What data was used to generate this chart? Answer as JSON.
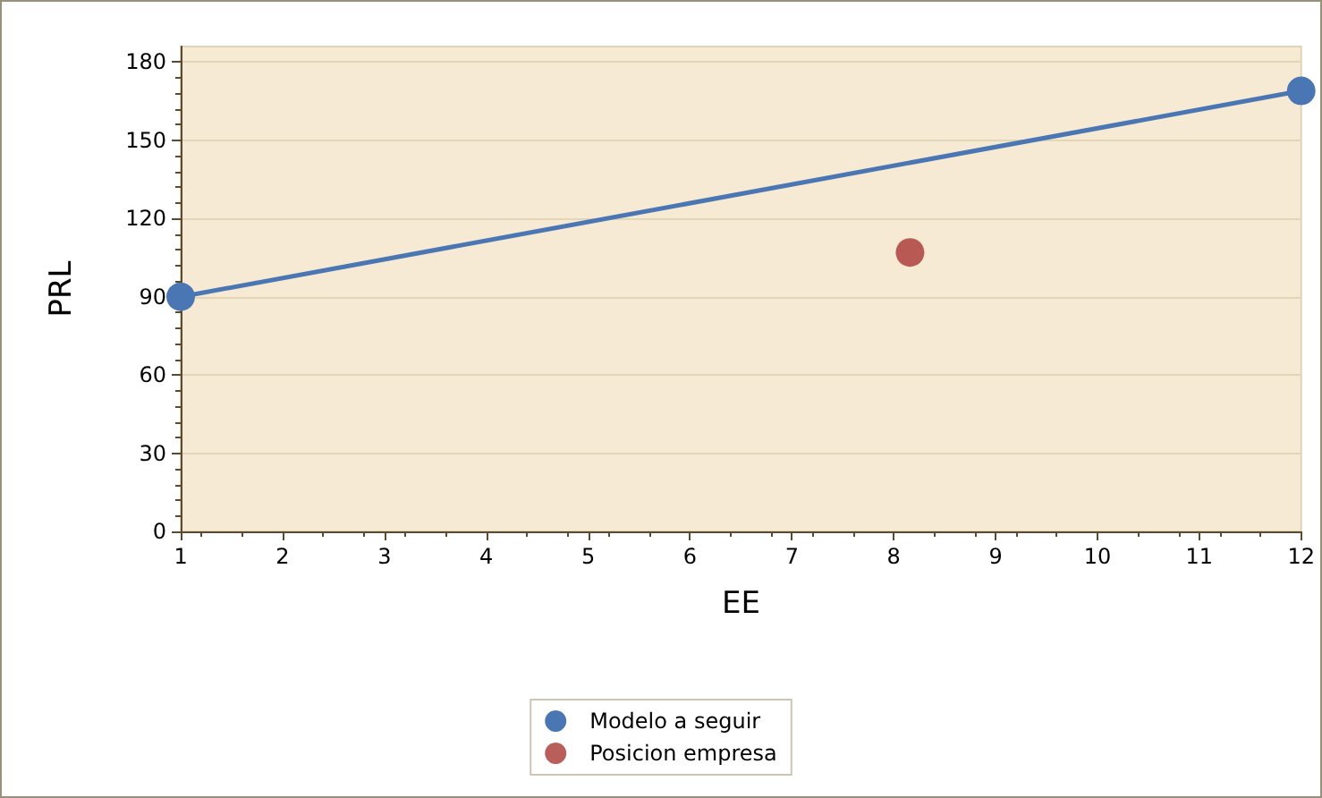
{
  "chart_data": {
    "type": "line",
    "xlabel": "EE",
    "ylabel": "PRL",
    "xlim": [
      1,
      12
    ],
    "xticks": [
      1,
      2,
      3,
      4,
      5,
      6,
      7,
      8,
      9,
      10,
      11,
      12
    ],
    "ylim": [
      0,
      186
    ],
    "yticks": [
      0,
      30,
      60,
      90,
      120,
      150,
      180
    ],
    "series": [
      {
        "name": "Modelo a seguir",
        "color": "#4a76b4",
        "x": [
          1,
          12
        ],
        "values": [
          90,
          169
        ]
      },
      {
        "name": "Posicion empresa",
        "type": "scatter",
        "color": "#a93632",
        "x": [
          8.16
        ],
        "values": [
          107
        ]
      }
    ],
    "marker": "circle",
    "grid": "y",
    "legend": "bottom"
  }
}
